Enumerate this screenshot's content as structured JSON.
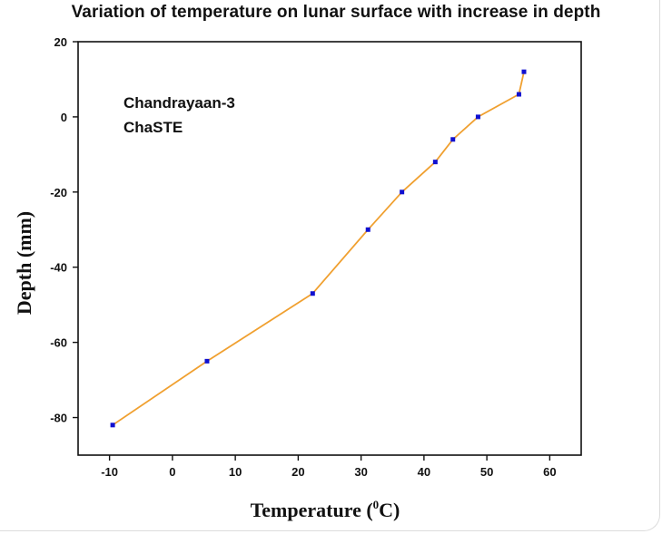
{
  "chart_data": {
    "type": "line",
    "title": "Variation of temperature on lunar surface with increase in depth",
    "xlabel": "Temperature (",
    "xlabel_superscript": "0",
    "xlabel_unit": "C)",
    "ylabel": "Depth (mm)",
    "xlim": [
      -15,
      65
    ],
    "ylim": [
      -90,
      20
    ],
    "xticks": [
      -10,
      0,
      10,
      20,
      30,
      40,
      50,
      60
    ],
    "yticks": [
      20,
      0,
      -20,
      -40,
      -60,
      -80
    ],
    "annotations": [
      "Chandrayaan-3",
      "ChaSTE"
    ],
    "series": [
      {
        "name": "ChaSTE",
        "line_color": "#f0a030",
        "marker_color": "#1010d0",
        "x": [
          -9.5,
          5.5,
          22.3,
          31.1,
          36.5,
          41.8,
          44.6,
          48.6,
          55.1,
          55.9
        ],
        "y": [
          -82,
          -65,
          -47,
          -30,
          -20,
          -12,
          -6,
          0,
          6,
          12
        ]
      }
    ]
  }
}
